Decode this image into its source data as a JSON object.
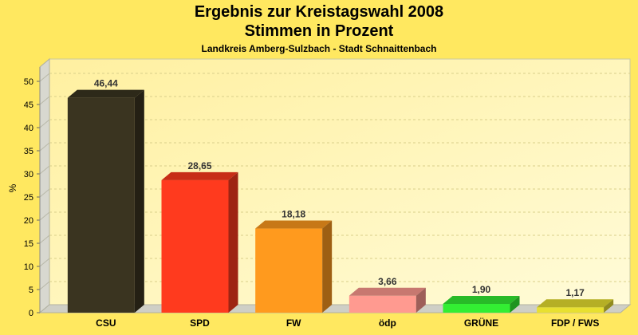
{
  "chart_data": {
    "type": "bar",
    "title": "Ergebnis zur Kreistagswahl 2008",
    "subtitle": "Stimmen in Prozent",
    "caption": "Landkreis Amberg-Sulzbach - Stadt Schnaittenbach",
    "ylabel": "%",
    "xlabel": "",
    "ylim": [
      0,
      50
    ],
    "yticks": [
      0,
      5,
      10,
      15,
      20,
      25,
      30,
      35,
      40,
      45,
      50
    ],
    "grid": true,
    "categories": [
      "CSU",
      "SPD",
      "FW",
      "ödp",
      "GRÜNE",
      "FDP / FWS"
    ],
    "values": [
      46.44,
      28.65,
      18.18,
      3.66,
      1.9,
      1.17
    ],
    "value_labels": [
      "46,44",
      "28,65",
      "18,18",
      "3,66",
      "1,90",
      "1,17"
    ],
    "colors": [
      "#3a3420",
      "#ff3a1e",
      "#ff9a1e",
      "#ff9a90",
      "#33ee33",
      "#e8e030"
    ]
  }
}
